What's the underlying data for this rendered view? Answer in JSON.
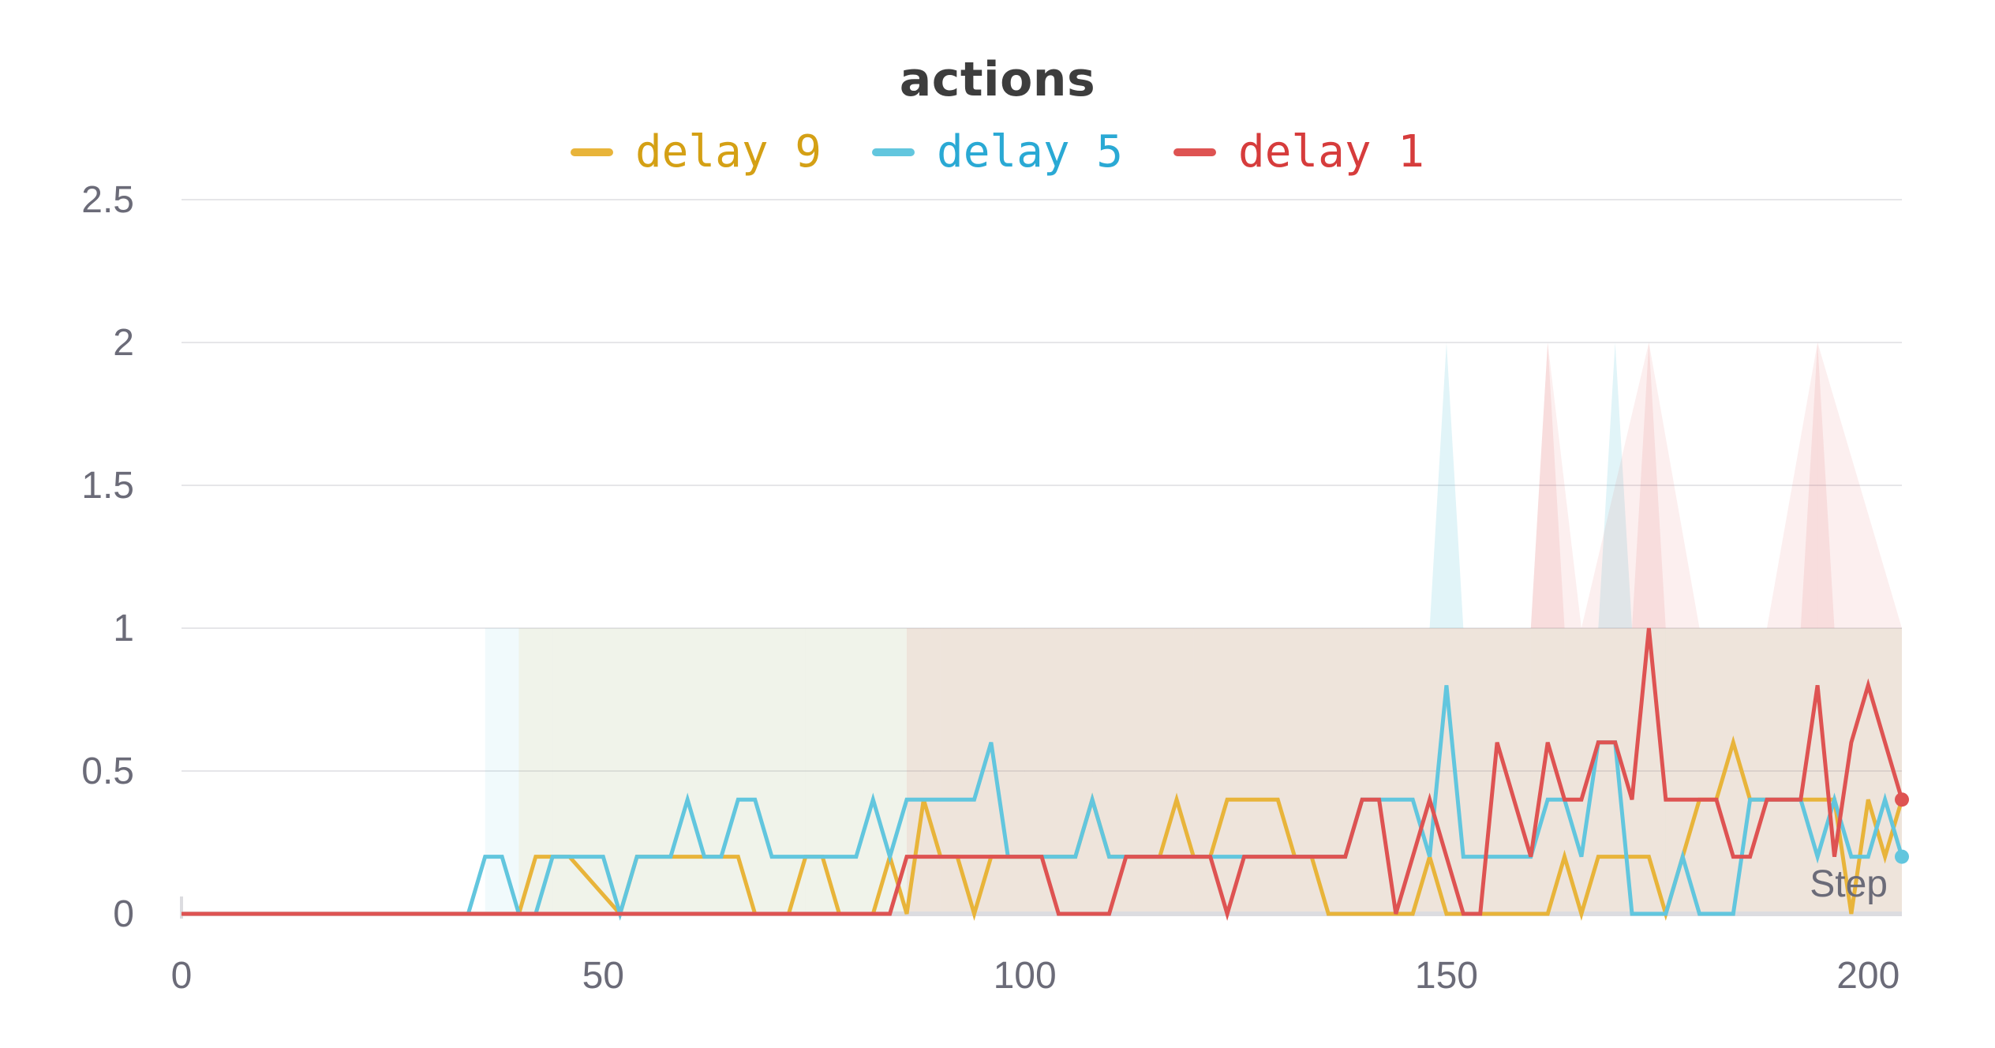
{
  "chart_data": {
    "type": "line",
    "title": "actions",
    "xlabel": "Step",
    "ylabel": "",
    "xlim": [
      0,
      204
    ],
    "ylim": [
      0,
      2.5
    ],
    "x_ticks": [
      "0",
      "50",
      "100",
      "150",
      "200"
    ],
    "y_ticks": [
      "0",
      "0.5",
      "1",
      "1.5",
      "2",
      "2.5"
    ],
    "grid": true,
    "legend": "top-center",
    "series": [
      {
        "name": "delay 9",
        "color": "#e8b43a",
        "legend_color": "#d4a015",
        "x": [
          0,
          40,
          42,
          46,
          52,
          54,
          56,
          58,
          62,
          64,
          66,
          68,
          70,
          72,
          74,
          76,
          78,
          80,
          82,
          84,
          86,
          88,
          90,
          92,
          94,
          96,
          98,
          100,
          102,
          104,
          106,
          108,
          110,
          112,
          114,
          116,
          118,
          120,
          122,
          124,
          126,
          128,
          130,
          132,
          134,
          136,
          138,
          140,
          142,
          144,
          146,
          148,
          150,
          152,
          154,
          156,
          158,
          160,
          162,
          164,
          166,
          168,
          170,
          172,
          174,
          176,
          178,
          180,
          182,
          184,
          186,
          188,
          190,
          192,
          194,
          196,
          198,
          200,
          202,
          204
        ],
        "y": [
          0,
          0,
          0.2,
          0.2,
          0,
          0.2,
          0.2,
          0.2,
          0.2,
          0.2,
          0.2,
          0,
          0,
          0,
          0.2,
          0.2,
          0,
          0,
          0,
          0.2,
          0,
          0.4,
          0.2,
          0.2,
          0,
          0.2,
          0.2,
          0.2,
          0.2,
          0.2,
          0.2,
          0.4,
          0.2,
          0.2,
          0.2,
          0.2,
          0.4,
          0.2,
          0.2,
          0.4,
          0.4,
          0.4,
          0.4,
          0.2,
          0.2,
          0,
          0,
          0,
          0,
          0,
          0,
          0.2,
          0,
          0,
          0,
          0,
          0,
          0,
          0,
          0.2,
          0,
          0.2,
          0.2,
          0.2,
          0.2,
          0,
          0.2,
          0.4,
          0.4,
          0.6,
          0.4,
          0.4,
          0.4,
          0.4,
          0.4,
          0.4,
          0,
          0.4,
          0.2,
          0.4
        ]
      },
      {
        "name": "delay 5",
        "color": "#62c6de",
        "legend_color": "#2aa9d4",
        "x": [
          0,
          34,
          36,
          38,
          40,
          42,
          44,
          46,
          48,
          50,
          52,
          54,
          56,
          58,
          60,
          62,
          64,
          66,
          68,
          70,
          72,
          74,
          76,
          78,
          80,
          82,
          84,
          86,
          88,
          90,
          92,
          94,
          96,
          98,
          100,
          102,
          104,
          106,
          108,
          110,
          112,
          114,
          116,
          118,
          120,
          122,
          124,
          126,
          128,
          130,
          132,
          134,
          136,
          138,
          140,
          142,
          144,
          146,
          148,
          150,
          152,
          154,
          156,
          158,
          160,
          162,
          164,
          166,
          168,
          170,
          172,
          174,
          176,
          178,
          180,
          182,
          184,
          186,
          188,
          190,
          192,
          194,
          196,
          198,
          200,
          202,
          204
        ],
        "y": [
          0,
          0,
          0.2,
          0.2,
          0,
          0,
          0.2,
          0.2,
          0.2,
          0.2,
          0,
          0.2,
          0.2,
          0.2,
          0.4,
          0.2,
          0.2,
          0.4,
          0.4,
          0.2,
          0.2,
          0.2,
          0.2,
          0.2,
          0.2,
          0.4,
          0.2,
          0.4,
          0.4,
          0.4,
          0.4,
          0.4,
          0.6,
          0.2,
          0.2,
          0.2,
          0.2,
          0.2,
          0.4,
          0.2,
          0.2,
          0.2,
          0.2,
          0.2,
          0.2,
          0.2,
          0.2,
          0.2,
          0.2,
          0.2,
          0.2,
          0.2,
          0.2,
          0.2,
          0.4,
          0.4,
          0.4,
          0.4,
          0.2,
          0.8,
          0.2,
          0.2,
          0.2,
          0.2,
          0.2,
          0.4,
          0.4,
          0.2,
          0.6,
          0.6,
          0,
          0,
          0,
          0.2,
          0,
          0,
          0,
          0.4,
          0.4,
          0.4,
          0.4,
          0.2,
          0.4,
          0.2,
          0.2,
          0.4,
          0.2
        ]
      },
      {
        "name": "delay 1",
        "color": "#de5352",
        "legend_color": "#d63c3c",
        "x": [
          0,
          84,
          86,
          88,
          90,
          92,
          94,
          96,
          98,
          100,
          102,
          104,
          106,
          108,
          110,
          112,
          114,
          116,
          118,
          120,
          122,
          124,
          126,
          128,
          130,
          132,
          134,
          136,
          138,
          140,
          142,
          144,
          146,
          148,
          150,
          152,
          154,
          156,
          158,
          160,
          162,
          164,
          166,
          168,
          170,
          172,
          174,
          176,
          178,
          180,
          182,
          184,
          186,
          188,
          190,
          192,
          194,
          196,
          198,
          200,
          202,
          204
        ],
        "y": [
          0,
          0,
          0.2,
          0.2,
          0.2,
          0.2,
          0.2,
          0.2,
          0.2,
          0.2,
          0.2,
          0,
          0,
          0,
          0,
          0.2,
          0.2,
          0.2,
          0.2,
          0.2,
          0.2,
          0,
          0.2,
          0.2,
          0.2,
          0.2,
          0.2,
          0.2,
          0.2,
          0.4,
          0.4,
          0,
          0.2,
          0.4,
          0.2,
          0,
          0,
          0.6,
          0.4,
          0.2,
          0.6,
          0.4,
          0.4,
          0.6,
          0.6,
          0.4,
          1,
          0.4,
          0.4,
          0.4,
          0.4,
          0.2,
          0.2,
          0.4,
          0.4,
          0.4,
          0.8,
          0.2,
          0.6,
          0.8,
          0.6,
          0.4
        ]
      }
    ],
    "bands": [
      {
        "series": "delay 5",
        "x": [
          36,
          38,
          50,
          52,
          58,
          62,
          66,
          74,
          80,
          86,
          92,
          96,
          100,
          104,
          108,
          120,
          130,
          140,
          148,
          150,
          152,
          156,
          160,
          164,
          168,
          170,
          172,
          176,
          180,
          184,
          190,
          196,
          200,
          204
        ],
        "upper": [
          1,
          1,
          1,
          1,
          1,
          1,
          1,
          1,
          1,
          1,
          1,
          1,
          1,
          1,
          1,
          1,
          1,
          1,
          1,
          2,
          1,
          1,
          1,
          1,
          1,
          2,
          1,
          1,
          1,
          1,
          1,
          1,
          1,
          1
        ]
      },
      {
        "series": "delay 9",
        "x": [
          40,
          44,
          56,
          64,
          74,
          84,
          88,
          96,
          108,
          118,
          126,
          134,
          148,
          166,
          176,
          184,
          196,
          204
        ],
        "upper": [
          1,
          1,
          1,
          1,
          1,
          1,
          1,
          1,
          1,
          1,
          1,
          1,
          1,
          1,
          1,
          1,
          1,
          1
        ]
      },
      {
        "series": "delay 1",
        "x": [
          86,
          90,
          100,
          110,
          124,
          140,
          154,
          160,
          162,
          166,
          174,
          180,
          188,
          194,
          204
        ],
        "upper": [
          1,
          1,
          1,
          1,
          1,
          1,
          1,
          1,
          2,
          1,
          2,
          1,
          1,
          2,
          1
        ]
      }
    ],
    "end_markers": [
      {
        "series": "delay 1",
        "x": 204,
        "y": 0.4
      },
      {
        "series": "delay 5",
        "x": 204,
        "y": 0.2
      }
    ]
  }
}
